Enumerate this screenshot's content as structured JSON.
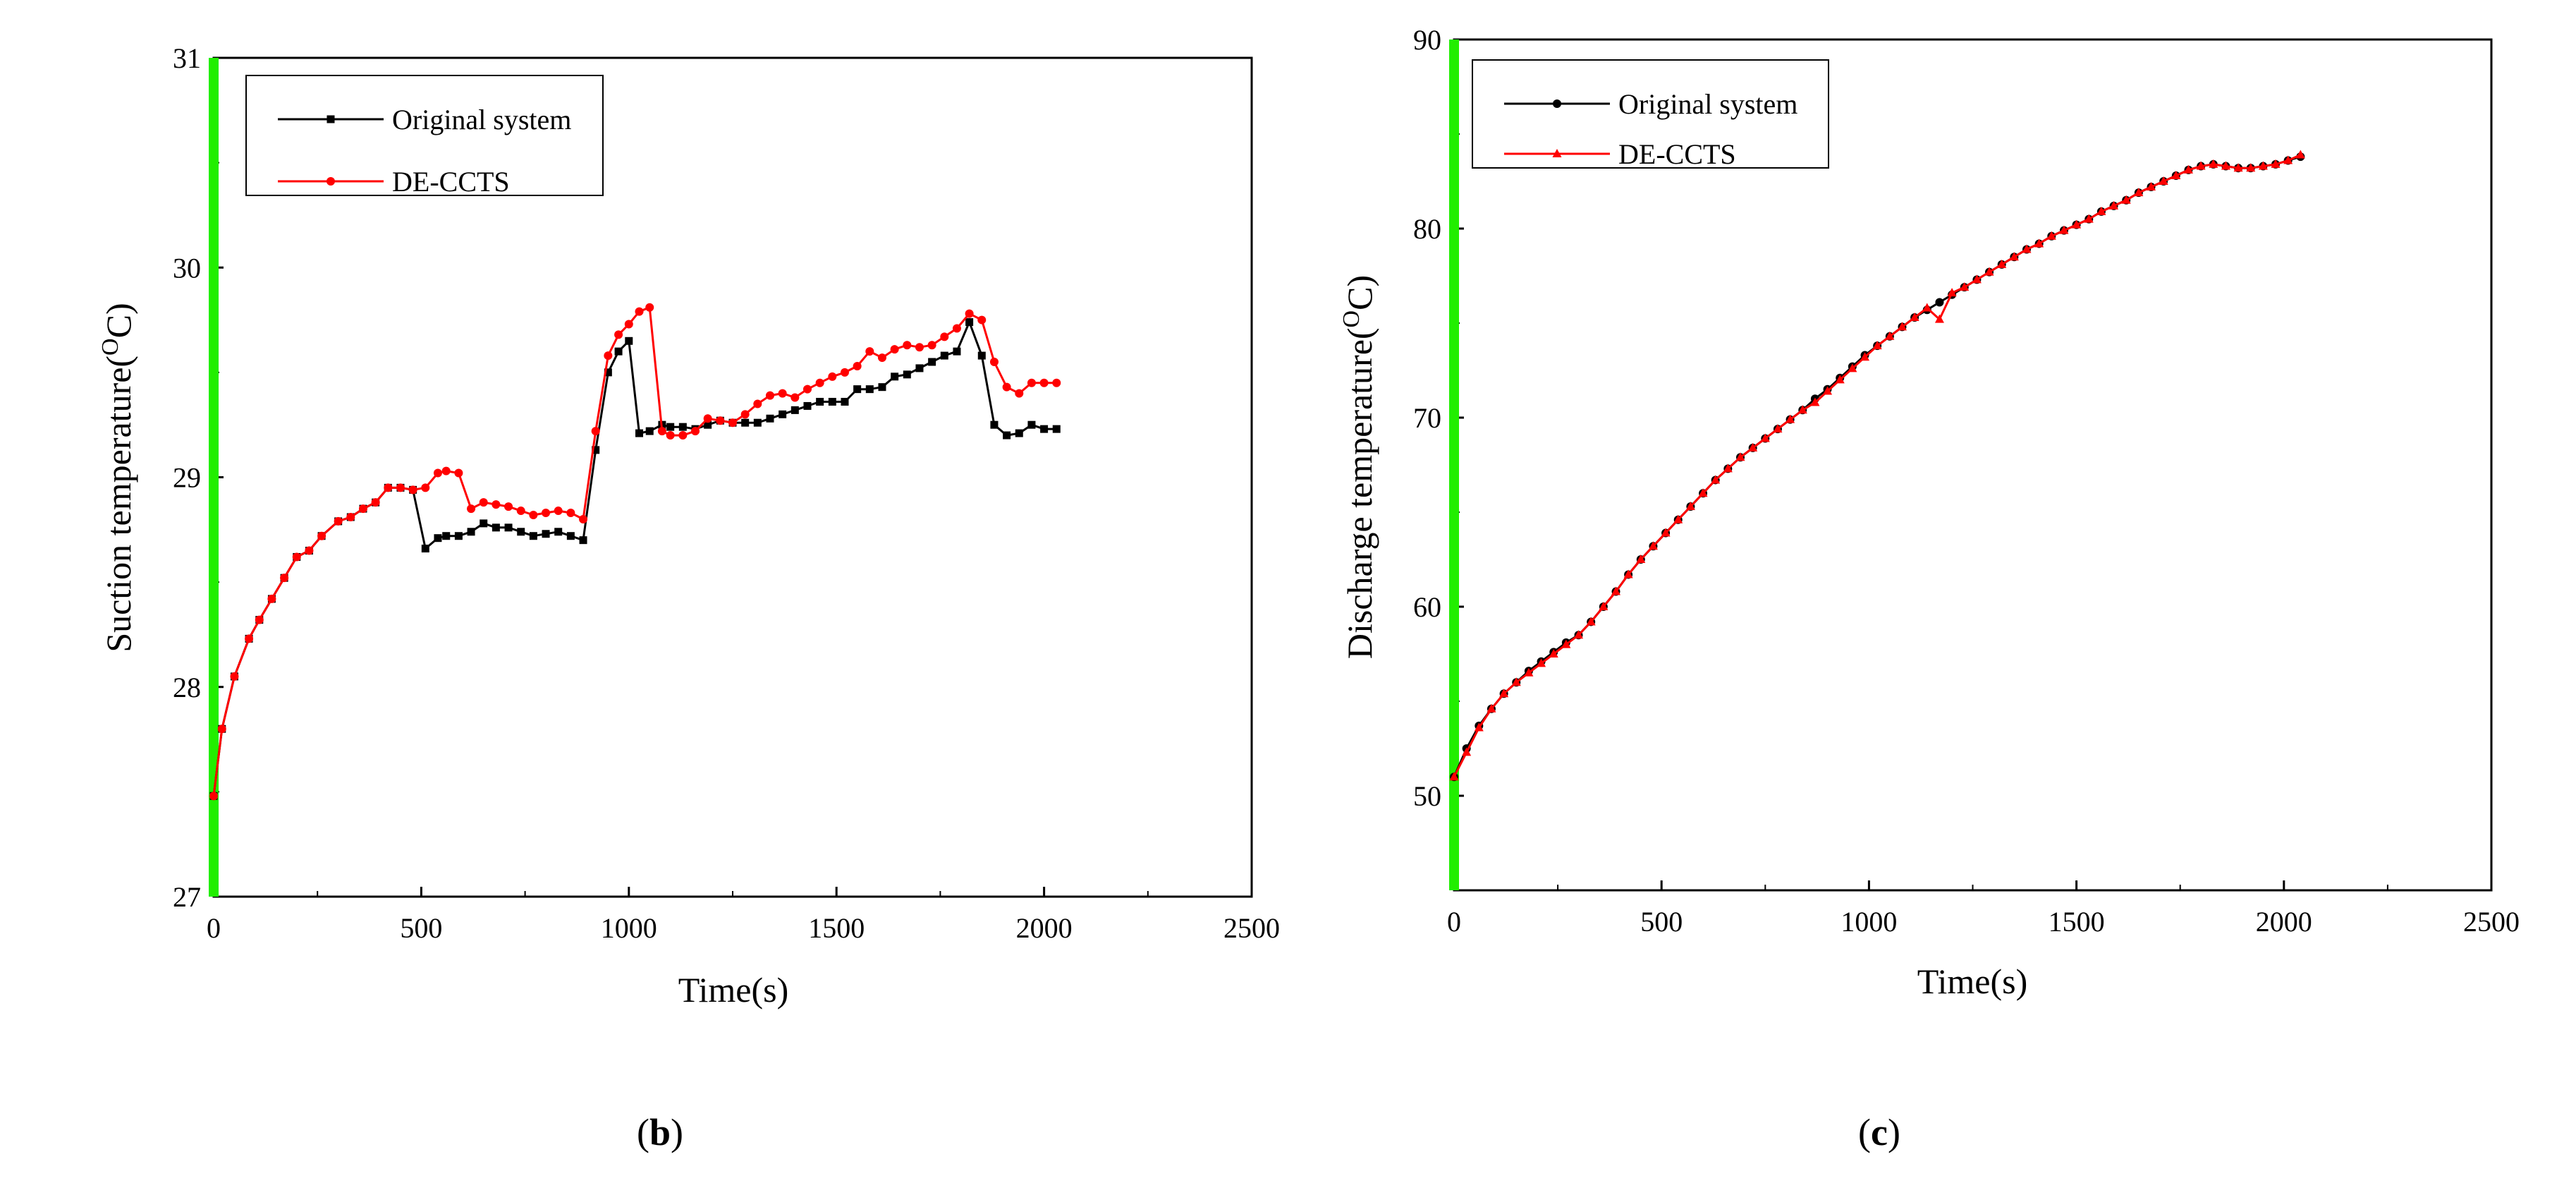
{
  "chart_data": [
    {
      "id": "b",
      "type": "line",
      "panel_label_prefix": "(",
      "panel_label_letter": "b",
      "panel_label_suffix": ")",
      "xlabel": "Time(s)",
      "ylabel_main": "Suction temperature(",
      "ylabel_sup": "O",
      "ylabel_end": "C)",
      "xlim": [
        0,
        2500
      ],
      "ylim": [
        27,
        31
      ],
      "x_ticks": [
        0,
        500,
        1000,
        1500,
        2000,
        2500
      ],
      "y_ticks": [
        27,
        28,
        29,
        30,
        31
      ],
      "legend_position": "top-left",
      "series": [
        {
          "name": "Original system",
          "color": "#000000",
          "marker": "square",
          "x": [
            0,
            20,
            50,
            85,
            110,
            140,
            170,
            200,
            230,
            260,
            300,
            330,
            360,
            390,
            420,
            450,
            480,
            510,
            540,
            560,
            590,
            620,
            650,
            680,
            710,
            740,
            770,
            800,
            830,
            860,
            890,
            920,
            950,
            975,
            1000,
            1025,
            1050,
            1080,
            1100,
            1130,
            1160,
            1190,
            1220,
            1250,
            1280,
            1310,
            1340,
            1370,
            1400,
            1430,
            1460,
            1490,
            1520,
            1550,
            1580,
            1610,
            1640,
            1670,
            1700,
            1730,
            1760,
            1790,
            1820,
            1850,
            1880,
            1910,
            1940,
            1970,
            2000,
            2030
          ],
          "y": [
            27.48,
            27.8,
            28.05,
            28.23,
            28.32,
            28.42,
            28.52,
            28.62,
            28.65,
            28.72,
            28.79,
            28.81,
            28.85,
            28.88,
            28.95,
            28.95,
            28.94,
            28.66,
            28.71,
            28.72,
            28.72,
            28.74,
            28.78,
            28.76,
            28.76,
            28.74,
            28.72,
            28.73,
            28.74,
            28.72,
            28.7,
            29.13,
            29.5,
            29.6,
            29.65,
            29.21,
            29.22,
            29.25,
            29.24,
            29.24,
            29.23,
            29.25,
            29.27,
            29.26,
            29.26,
            29.26,
            29.28,
            29.3,
            29.32,
            29.34,
            29.36,
            29.36,
            29.36,
            29.42,
            29.42,
            29.43,
            29.48,
            29.49,
            29.52,
            29.55,
            29.58,
            29.6,
            29.74,
            29.58,
            29.25,
            29.2,
            29.21,
            29.25,
            29.23,
            29.23
          ]
        },
        {
          "name": "DE-CCTS",
          "color": "#ff0000",
          "marker": "circle",
          "x": [
            0,
            20,
            50,
            85,
            110,
            140,
            170,
            200,
            230,
            260,
            300,
            330,
            360,
            390,
            420,
            450,
            480,
            510,
            540,
            560,
            590,
            620,
            650,
            680,
            710,
            740,
            770,
            800,
            830,
            860,
            890,
            920,
            950,
            975,
            1000,
            1025,
            1050,
            1080,
            1100,
            1130,
            1160,
            1190,
            1220,
            1250,
            1280,
            1310,
            1340,
            1370,
            1400,
            1430,
            1460,
            1490,
            1520,
            1550,
            1580,
            1610,
            1640,
            1670,
            1700,
            1730,
            1760,
            1790,
            1820,
            1850,
            1880,
            1910,
            1940,
            1970,
            2000,
            2030
          ],
          "y": [
            27.48,
            27.8,
            28.05,
            28.23,
            28.32,
            28.42,
            28.52,
            28.62,
            28.65,
            28.72,
            28.79,
            28.81,
            28.85,
            28.88,
            28.95,
            28.95,
            28.94,
            28.95,
            29.02,
            29.03,
            29.02,
            28.85,
            28.88,
            28.87,
            28.86,
            28.84,
            28.82,
            28.83,
            28.84,
            28.83,
            28.8,
            29.22,
            29.58,
            29.68,
            29.73,
            29.79,
            29.81,
            29.22,
            29.2,
            29.2,
            29.22,
            29.28,
            29.27,
            29.26,
            29.3,
            29.35,
            29.39,
            29.4,
            29.38,
            29.42,
            29.45,
            29.48,
            29.5,
            29.53,
            29.6,
            29.57,
            29.61,
            29.63,
            29.62,
            29.63,
            29.67,
            29.71,
            29.78,
            29.75,
            29.55,
            29.43,
            29.4,
            29.45,
            29.45,
            29.45
          ]
        }
      ]
    },
    {
      "id": "c",
      "type": "line",
      "panel_label_prefix": "(",
      "panel_label_letter": "c",
      "panel_label_suffix": ")",
      "xlabel": "Time(s)",
      "ylabel_main": "Discharge temperature(",
      "ylabel_sup": "O",
      "ylabel_end": "C)",
      "xlim": [
        0,
        2500
      ],
      "ylim": [
        45,
        90
      ],
      "x_ticks": [
        0,
        500,
        1000,
        1500,
        2000,
        2500
      ],
      "y_ticks": [
        50,
        60,
        70,
        80,
        90
      ],
      "legend_position": "top-left",
      "series": [
        {
          "name": "Original system",
          "color": "#000000",
          "marker": "circle",
          "x": [
            0,
            30,
            60,
            90,
            120,
            150,
            180,
            210,
            240,
            270,
            300,
            330,
            360,
            390,
            420,
            450,
            480,
            510,
            540,
            570,
            600,
            630,
            660,
            690,
            720,
            750,
            780,
            810,
            840,
            870,
            900,
            930,
            960,
            990,
            1020,
            1050,
            1080,
            1110,
            1140,
            1170,
            1200,
            1230,
            1260,
            1290,
            1320,
            1350,
            1380,
            1410,
            1440,
            1470,
            1500,
            1530,
            1560,
            1590,
            1620,
            1650,
            1680,
            1710,
            1740,
            1770,
            1800,
            1830,
            1860,
            1890,
            1920,
            1950,
            1980,
            2010,
            2040
          ],
          "y": [
            51,
            52.5,
            53.7,
            54.6,
            55.4,
            56,
            56.6,
            57.1,
            57.6,
            58.1,
            58.5,
            59.2,
            60,
            60.8,
            61.7,
            62.5,
            63.2,
            63.9,
            64.6,
            65.3,
            66,
            66.7,
            67.3,
            67.9,
            68.4,
            68.9,
            69.4,
            69.9,
            70.4,
            71,
            71.5,
            72.1,
            72.7,
            73.3,
            73.8,
            74.3,
            74.8,
            75.3,
            75.7,
            76.1,
            76.5,
            76.9,
            77.3,
            77.7,
            78.1,
            78.5,
            78.9,
            79.2,
            79.6,
            79.9,
            80.2,
            80.5,
            80.9,
            81.2,
            81.5,
            81.9,
            82.2,
            82.5,
            82.8,
            83.1,
            83.3,
            83.4,
            83.3,
            83.2,
            83.2,
            83.3,
            83.4,
            83.6,
            83.8
          ]
        },
        {
          "name": "DE-CCTS",
          "color": "#ff0000",
          "marker": "triangle",
          "x": [
            0,
            30,
            60,
            90,
            120,
            150,
            180,
            210,
            240,
            270,
            300,
            330,
            360,
            390,
            420,
            450,
            480,
            510,
            540,
            570,
            600,
            630,
            660,
            690,
            720,
            750,
            780,
            810,
            840,
            870,
            900,
            930,
            960,
            990,
            1020,
            1050,
            1080,
            1110,
            1140,
            1170,
            1200,
            1230,
            1260,
            1290,
            1320,
            1350,
            1380,
            1410,
            1440,
            1470,
            1500,
            1530,
            1560,
            1590,
            1620,
            1650,
            1680,
            1710,
            1740,
            1770,
            1800,
            1830,
            1860,
            1890,
            1920,
            1950,
            1980,
            2010,
            2040
          ],
          "y": [
            51,
            52.3,
            53.6,
            54.6,
            55.4,
            56,
            56.5,
            57,
            57.5,
            58,
            58.5,
            59.2,
            60,
            60.8,
            61.7,
            62.5,
            63.2,
            63.9,
            64.6,
            65.3,
            66,
            66.7,
            67.3,
            67.9,
            68.4,
            68.9,
            69.4,
            69.9,
            70.4,
            70.8,
            71.4,
            72,
            72.6,
            73.2,
            73.8,
            74.3,
            74.8,
            75.3,
            75.8,
            75.2,
            76.6,
            76.9,
            77.3,
            77.7,
            78.1,
            78.5,
            78.9,
            79.2,
            79.6,
            79.9,
            80.2,
            80.5,
            80.9,
            81.2,
            81.5,
            81.9,
            82.2,
            82.5,
            82.8,
            83.1,
            83.3,
            83.4,
            83.3,
            83.2,
            83.2,
            83.3,
            83.4,
            83.6,
            83.9
          ]
        }
      ]
    }
  ]
}
